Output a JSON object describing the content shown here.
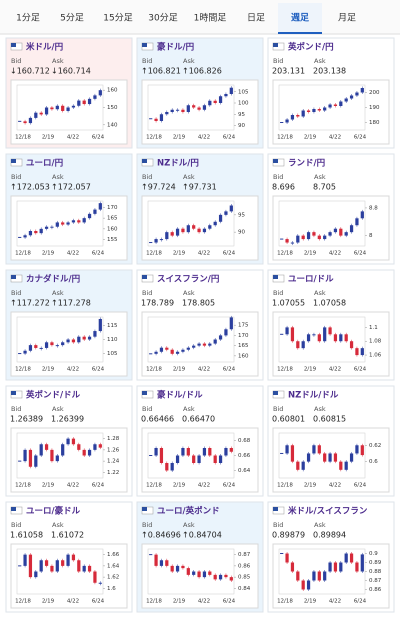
{
  "tabs": [
    "1分足",
    "5分足",
    "15分足",
    "30分足",
    "1時間足",
    "日足",
    "週足",
    "月足"
  ],
  "active_tab": 6,
  "bid_label": "Bid",
  "ask_label": "Ask",
  "x_labels": [
    "12/18",
    "2/19",
    "4/22",
    "6/24"
  ],
  "cards": [
    {
      "name": "米ドル/円",
      "bid": "↓160.712",
      "ask": "↓160.714",
      "background": "#fdeeee",
      "ylim": [
        137,
        163
      ],
      "yticks": [
        160,
        150,
        140
      ],
      "closes": [
        142,
        141,
        144,
        147,
        146,
        150,
        149,
        151,
        148,
        150,
        151,
        154,
        152,
        155,
        157,
        160
      ]
    },
    {
      "name": "豪ドル/円",
      "bid": "↑106.821",
      "ask": "↑106.826",
      "background": "#eaf4fc",
      "ylim": [
        88,
        108
      ],
      "yticks": [
        105,
        100,
        95,
        90
      ],
      "closes": [
        93,
        92,
        95,
        96,
        97,
        97,
        96,
        99,
        98,
        97,
        99,
        101,
        100,
        103,
        104,
        106.8
      ]
    },
    {
      "name": "英ポンド/円",
      "bid": "203.131",
      "ask": "203.138",
      "background": "#ffffff",
      "ylim": [
        175,
        205
      ],
      "yticks": [
        200,
        190,
        180
      ],
      "closes": [
        180,
        182,
        185,
        184,
        188,
        187,
        189,
        188,
        190,
        192,
        191,
        194,
        196,
        198,
        200,
        203
      ]
    },
    {
      "name": "ユーロ/円",
      "bid": "↑172.053",
      "ask": "↑172.057",
      "background": "#eaf4fc",
      "ylim": [
        152,
        173
      ],
      "yticks": [
        170,
        165,
        160,
        155
      ],
      "closes": [
        156,
        157,
        159,
        158,
        160,
        161,
        161,
        163,
        162,
        163,
        164,
        163,
        165,
        167,
        169,
        172
      ]
    },
    {
      "name": "NZドル/円",
      "bid": "↑97.724",
      "ask": "↑97.731",
      "background": "#eaf4fc",
      "ylim": [
        86,
        99
      ],
      "yticks": [
        95,
        90
      ],
      "closes": [
        87,
        88,
        88,
        90,
        89,
        91,
        90,
        92,
        91,
        90,
        91,
        92,
        93,
        95,
        96,
        97.7
      ]
    },
    {
      "name": "ランド/円",
      "bid": "8.696",
      "ask": "8.705",
      "background": "#ffffff",
      "ylim": [
        7.7,
        9.0
      ],
      "yticks": [
        8.8,
        8
      ],
      "closes": [
        7.9,
        7.8,
        7.8,
        8.0,
        7.9,
        8.1,
        8.0,
        7.9,
        8.0,
        8.1,
        8.2,
        8.0,
        8.1,
        8.3,
        8.5,
        8.7
      ]
    },
    {
      "name": "カナダドル/円",
      "bid": "↑117.272",
      "ask": "↑117.278",
      "background": "#eaf4fc",
      "ylim": [
        102,
        118
      ],
      "yticks": [
        115,
        110,
        105
      ],
      "closes": [
        105,
        106,
        108,
        107,
        107,
        109,
        108,
        108,
        109,
        110,
        109,
        111,
        110,
        111,
        113,
        117.3
      ]
    },
    {
      "name": "スイスフラン/円",
      "bid": "178.789",
      "ask": "178.805",
      "background": "#ffffff",
      "ylim": [
        157,
        179
      ],
      "yticks": [
        175,
        170,
        165,
        160
      ],
      "closes": [
        161,
        162,
        164,
        163,
        161,
        162,
        163,
        164,
        165,
        166,
        165,
        166,
        168,
        170,
        173,
        178.8
      ]
    },
    {
      "name": "ユーロ/ドル",
      "bid": "1.07055",
      "ask": "1.07058",
      "background": "#ffffff",
      "ylim": [
        1.05,
        1.115
      ],
      "yticks": [
        1.1,
        1.08,
        1.06
      ],
      "closes": [
        1.09,
        1.1,
        1.08,
        1.07,
        1.08,
        1.09,
        1.09,
        1.08,
        1.1,
        1.09,
        1.08,
        1.09,
        1.08,
        1.07,
        1.06,
        1.07
      ]
    },
    {
      "name": "英ポンド/ドル",
      "bid": "1.26389",
      "ask": "1.26399",
      "background": "#ffffff",
      "ylim": [
        1.21,
        1.29
      ],
      "yticks": [
        1.28,
        1.26,
        1.24,
        1.22
      ],
      "closes": [
        1.24,
        1.26,
        1.23,
        1.25,
        1.27,
        1.26,
        1.24,
        1.25,
        1.27,
        1.28,
        1.27,
        1.26,
        1.25,
        1.26,
        1.27,
        1.264
      ]
    },
    {
      "name": "豪ドル/ドル",
      "bid": "0.66466",
      "ask": "0.66470",
      "background": "#ffffff",
      "ylim": [
        0.63,
        0.69
      ],
      "yticks": [
        0.68,
        0.66,
        0.64
      ],
      "closes": [
        0.66,
        0.67,
        0.65,
        0.64,
        0.65,
        0.66,
        0.67,
        0.66,
        0.65,
        0.66,
        0.67,
        0.66,
        0.65,
        0.66,
        0.67,
        0.665
      ]
    },
    {
      "name": "NZドル/ドル",
      "bid": "0.60801",
      "ask": "0.60815",
      "background": "#ffffff",
      "ylim": [
        0.58,
        0.635
      ],
      "yticks": [
        0.62,
        0.6
      ],
      "closes": [
        0.61,
        0.62,
        0.6,
        0.59,
        0.6,
        0.61,
        0.62,
        0.61,
        0.6,
        0.61,
        0.6,
        0.59,
        0.6,
        0.61,
        0.62,
        0.608
      ]
    },
    {
      "name": "ユーロ/豪ドル",
      "bid": "1.61058",
      "ask": "1.61072",
      "background": "#ffffff",
      "ylim": [
        1.59,
        1.67
      ],
      "yticks": [
        1.66,
        1.64,
        1.62,
        1.6
      ],
      "closes": [
        1.64,
        1.66,
        1.62,
        1.63,
        1.65,
        1.64,
        1.63,
        1.65,
        1.64,
        1.66,
        1.65,
        1.63,
        1.64,
        1.63,
        1.61,
        1.61
      ]
    },
    {
      "name": "ユーロ/英ポンド",
      "bid": "↑0.84696",
      "ask": "↑0.84704",
      "background": "#eaf4fc",
      "ylim": [
        0.835,
        0.875
      ],
      "yticks": [
        0.87,
        0.86,
        0.85,
        0.84
      ],
      "closes": [
        0.87,
        0.86,
        0.865,
        0.86,
        0.855,
        0.86,
        0.858,
        0.852,
        0.855,
        0.85,
        0.855,
        0.852,
        0.848,
        0.852,
        0.85,
        0.847
      ]
    },
    {
      "name": "米ドル/スイスフラン",
      "bid": "0.89879",
      "ask": "0.89894",
      "background": "#ffffff",
      "ylim": [
        0.855,
        0.905
      ],
      "yticks": [
        0.9,
        0.89,
        0.88,
        0.87,
        0.86
      ],
      "closes": [
        0.9,
        0.89,
        0.88,
        0.87,
        0.86,
        0.87,
        0.88,
        0.87,
        0.88,
        0.89,
        0.88,
        0.89,
        0.9,
        0.89,
        0.88,
        0.899
      ]
    }
  ]
}
